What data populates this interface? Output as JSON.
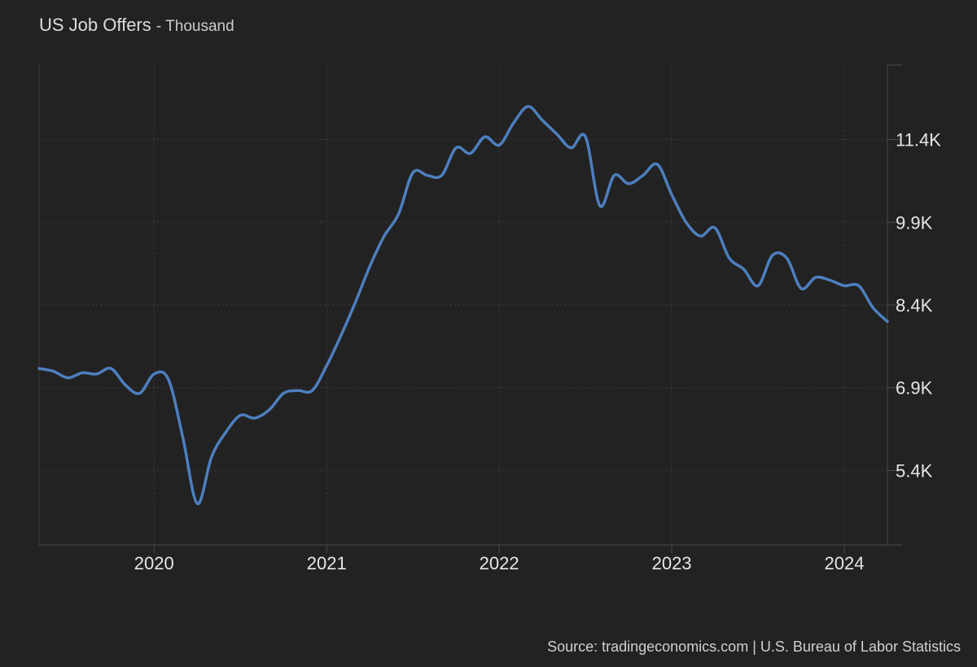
{
  "chart_data": {
    "type": "line",
    "title": "US Job Offers",
    "subtitle": "Thousand",
    "source": "Source: tradingeconomics.com | U.S. Bureau of Labor Statistics",
    "xlabel": "",
    "ylabel": "",
    "x_ticks": [
      "2020",
      "2021",
      "2022",
      "2023",
      "2024"
    ],
    "y_ticks": [
      "5.4K",
      "6.9K",
      "8.4K",
      "9.9K",
      "11.4K"
    ],
    "y_tick_values": [
      5400,
      6900,
      8400,
      9900,
      11400
    ],
    "xlim": [
      "2019-05",
      "2024-04"
    ],
    "ylim": [
      4050,
      12750
    ],
    "grid": true,
    "legend": "none",
    "line_color": "#4d7fbf",
    "series": [
      {
        "x": [
          "2019-05",
          "2019-06",
          "2019-07",
          "2019-08",
          "2019-09",
          "2019-10",
          "2019-11",
          "2019-12",
          "2020-01",
          "2020-02",
          "2020-03",
          "2020-04",
          "2020-05",
          "2020-06",
          "2020-07",
          "2020-08",
          "2020-09",
          "2020-10",
          "2020-11",
          "2020-12",
          "2021-01",
          "2021-02",
          "2021-03",
          "2021-04",
          "2021-05",
          "2021-06",
          "2021-07",
          "2021-08",
          "2021-09",
          "2021-10",
          "2021-11",
          "2021-12",
          "2022-01",
          "2022-02",
          "2022-03",
          "2022-04",
          "2022-05",
          "2022-06",
          "2022-07",
          "2022-08",
          "2022-09",
          "2022-10",
          "2022-11",
          "2022-12",
          "2023-01",
          "2023-02",
          "2023-03",
          "2023-04",
          "2023-05",
          "2023-06",
          "2023-07",
          "2023-08",
          "2023-09",
          "2023-10",
          "2023-11",
          "2023-12",
          "2024-01",
          "2024-02",
          "2024-03",
          "2024-04"
        ],
        "values": [
          7250,
          7200,
          7080,
          7170,
          7150,
          7250,
          6950,
          6800,
          7150,
          7050,
          6000,
          4800,
          5650,
          6100,
          6400,
          6350,
          6500,
          6800,
          6850,
          6850,
          7300,
          7850,
          8450,
          9100,
          9650,
          10050,
          10800,
          10750,
          10750,
          11250,
          11150,
          11450,
          11300,
          11700,
          12000,
          11750,
          11500,
          11250,
          11450,
          10200,
          10750,
          10600,
          10750,
          10950,
          10400,
          9900,
          9650,
          9800,
          9250,
          9050,
          8750,
          9300,
          9250,
          8700,
          8900,
          8850,
          8750,
          8750,
          8350,
          8100
        ]
      }
    ]
  }
}
